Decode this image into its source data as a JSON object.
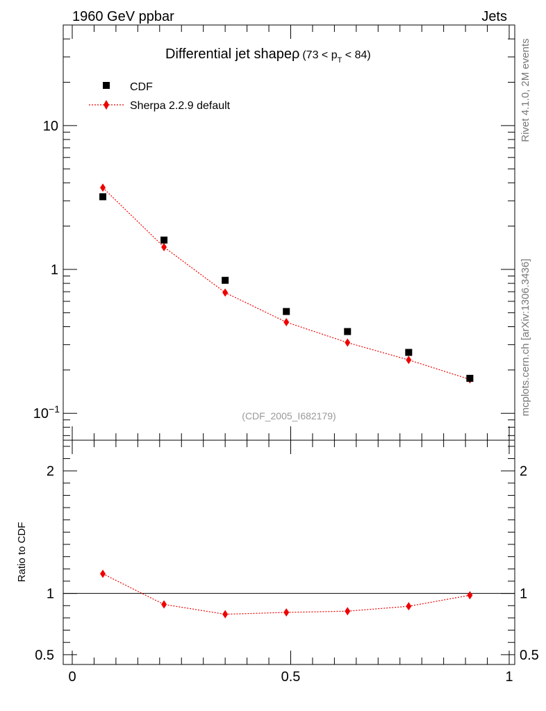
{
  "header": {
    "left": "1960 GeV ppbar",
    "right": "Jets"
  },
  "side_labels": {
    "rivet": "Rivet 4.1.0,  2M events",
    "mcplots": "mcplots.cern.ch [arXiv:1306.3436]"
  },
  "chart_data": {
    "type": "scatter",
    "title": "Differential jet shapeρ",
    "title_range_prefix": "(73 < p",
    "title_range_sub": "T",
    "title_range_suffix": " < 84)",
    "analysis_id": "(CDF_2005_I682179)",
    "xlim": [
      0,
      1
    ],
    "ylim_log": [
      0.065,
      50
    ],
    "yscale": "log",
    "x_ticks": [
      {
        "value": 0,
        "label": "0"
      },
      {
        "value": 0.5,
        "label": "0.5"
      },
      {
        "value": 1,
        "label": "1"
      }
    ],
    "y_ticks": [
      {
        "value": 10,
        "label": "10"
      },
      {
        "value": 1,
        "label": "1"
      },
      {
        "value": 0.1,
        "label_base": "10",
        "label_exp": "−1"
      }
    ],
    "x": [
      0.07,
      0.21,
      0.35,
      0.49,
      0.63,
      0.77,
      0.91
    ],
    "series": [
      {
        "name": "CDF",
        "marker": "square",
        "color": "#000000",
        "values": [
          3.2,
          1.6,
          0.84,
          0.51,
          0.37,
          0.265,
          0.175
        ]
      },
      {
        "name": "Sherpa 2.2.9 default",
        "marker": "diamond",
        "color": "#ee0000",
        "line": "dotted",
        "values": [
          3.7,
          1.43,
          0.69,
          0.43,
          0.31,
          0.235,
          0.172
        ]
      }
    ],
    "ratio": {
      "ylabel": "Ratio to CDF",
      "ylim": [
        0.42,
        2.25
      ],
      "y_ticks": [
        {
          "value": 2,
          "label": "2"
        },
        {
          "value": 1,
          "label": "1"
        },
        {
          "value": 0.5,
          "label": "0.5"
        }
      ],
      "reference": 1,
      "values": [
        1.16,
        0.91,
        0.83,
        0.845,
        0.855,
        0.895,
        0.985
      ]
    }
  }
}
